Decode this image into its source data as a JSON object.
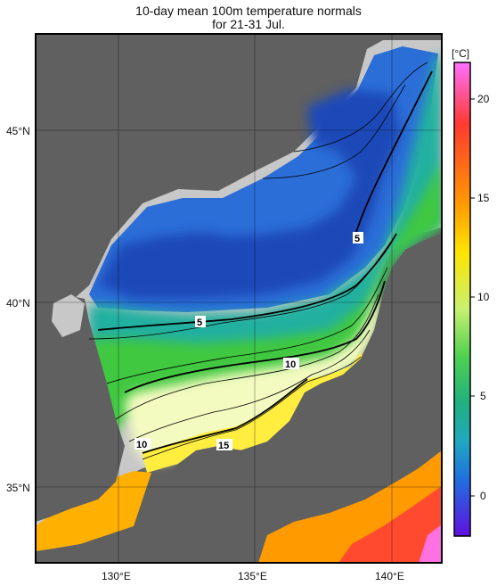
{
  "title_line1": "10-day mean 100m temperature normals",
  "title_line2": "for 21-31 Jul.",
  "lat_labels": [
    "45°N",
    "40°N",
    "35°N"
  ],
  "lon_labels": [
    "130°E",
    "135°E",
    "140°E"
  ],
  "contour_labels": [
    "5",
    "5",
    "10",
    "10",
    "15"
  ],
  "colorbar": {
    "unit": "[°C]",
    "ticks": [
      "20",
      "15",
      "10",
      "5",
      "0"
    ],
    "colors": [
      "#ff60ff",
      "#ff3020",
      "#ff9000",
      "#ffe000",
      "#ffff80",
      "#f0ffe0",
      "#90f070",
      "#30c030",
      "#20b0a0",
      "#2060d0",
      "#6010d0"
    ]
  },
  "colors": {
    "land": "#606060",
    "nodata": "#c8c8c8",
    "cold": "#2c6fd8",
    "frame": "#000000"
  }
}
